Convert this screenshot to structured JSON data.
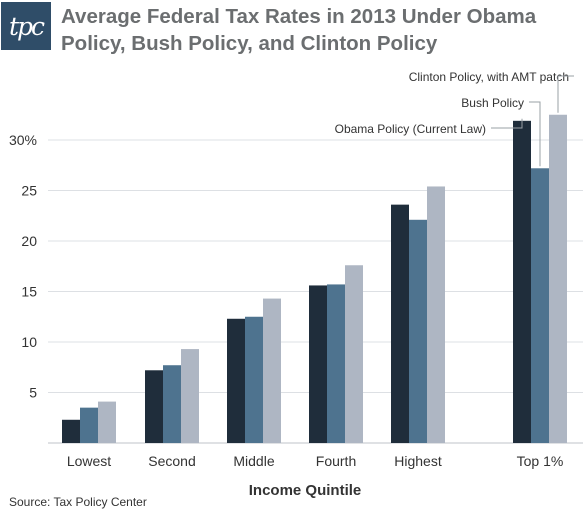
{
  "logo_text": "tpc",
  "title": "Average Federal Tax Rates in 2013 Under Obama Policy, Bush Policy, and Clinton Policy",
  "source": "Source: Tax Policy Center",
  "chart_data": {
    "type": "bar",
    "title": "Average Federal Tax Rates in 2013 Under Obama Policy, Bush Policy, and Clinton Policy",
    "xlabel": "Income Quintile",
    "ylabel": "",
    "categories": [
      "Lowest",
      "Second",
      "Middle",
      "Fourth",
      "Highest",
      "Top 1%"
    ],
    "series": [
      {
        "name": "Obama Policy (Current Law)",
        "color": "#1f2d3b",
        "values": [
          2.3,
          7.2,
          12.3,
          15.6,
          23.6,
          31.9
        ]
      },
      {
        "name": "Bush Policy",
        "color": "#4e738f",
        "values": [
          3.5,
          7.7,
          12.5,
          15.7,
          22.1,
          27.2
        ]
      },
      {
        "name": "Clinton Policy, with AMT patch",
        "color": "#aeb6c3",
        "values": [
          4.1,
          9.3,
          14.3,
          17.6,
          25.4,
          32.5
        ]
      }
    ],
    "ylim": [
      0,
      30
    ],
    "yticks": [
      5,
      10,
      15,
      20,
      25,
      30
    ],
    "ytick_labels": [
      "5",
      "10",
      "15",
      "20",
      "25",
      "30%"
    ],
    "grid": true,
    "legend": "leader-line labels above Top 1% bars"
  }
}
